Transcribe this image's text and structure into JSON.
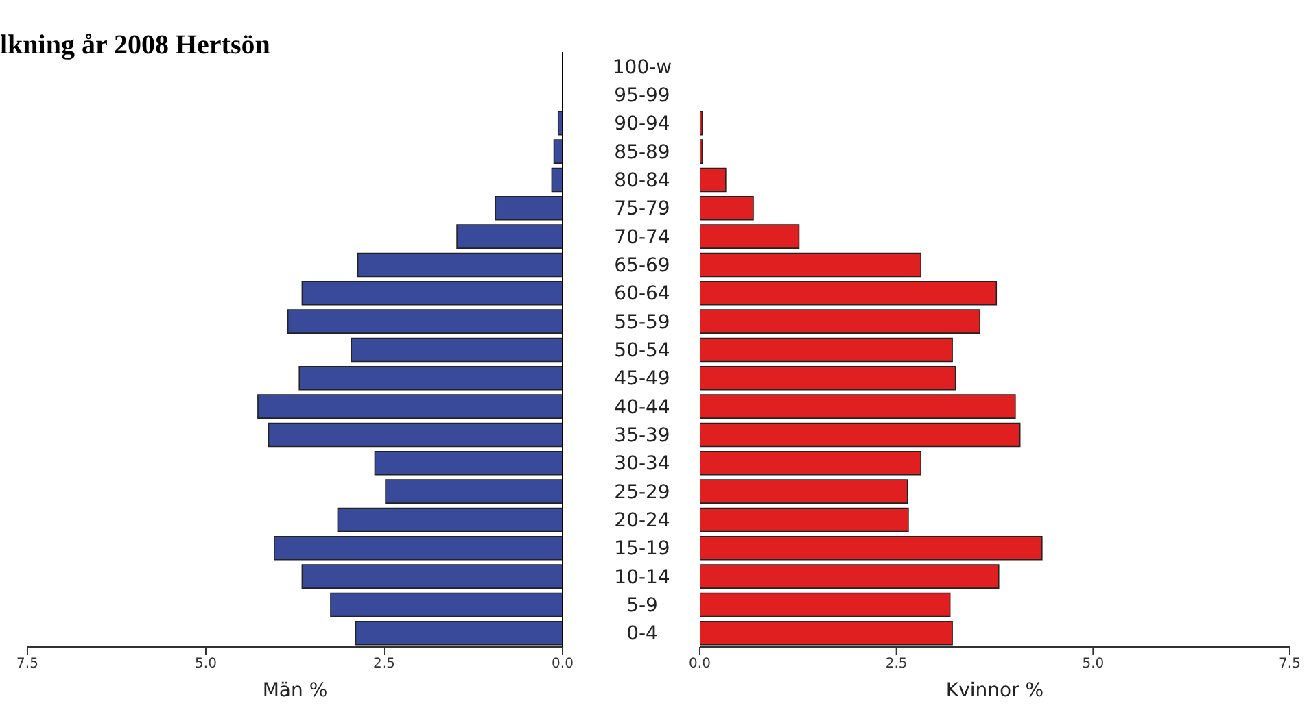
{
  "chart_data": [
    {
      "type": "bar",
      "orientation": "horizontal",
      "title": "lkning år 2008 Hertsön",
      "xlabel": "Män %",
      "categories": [
        "100-w",
        "95-99",
        "90-94",
        "85-89",
        "80-84",
        "75-79",
        "70-74",
        "65-69",
        "60-64",
        "55-59",
        "50-54",
        "45-49",
        "40-44",
        "35-39",
        "30-34",
        "25-29",
        "20-24",
        "15-19",
        "10-14",
        "5-9",
        "0-4"
      ],
      "values": [
        0,
        0,
        0.06,
        0.12,
        0.15,
        0.94,
        1.48,
        2.87,
        3.65,
        3.85,
        2.96,
        3.69,
        4.27,
        4.12,
        2.63,
        2.48,
        3.15,
        4.04,
        3.65,
        3.25,
        2.9
      ],
      "color": "#3a4a9a",
      "xlim": [
        7.5,
        0
      ],
      "xticks": [
        {
          "value": 7.5,
          "label": "7.5"
        },
        {
          "value": 5,
          "label": "5.0"
        },
        {
          "value": 2.5,
          "label": "2.5"
        },
        {
          "value": 0,
          "label": "0.0"
        }
      ]
    },
    {
      "type": "bar",
      "orientation": "horizontal",
      "xlabel": "Kvinnor %",
      "tick_labels": "x",
      "values": [
        0,
        0,
        0.03,
        0.03,
        0.33,
        0.68,
        1.26,
        2.81,
        3.77,
        3.56,
        3.21,
        3.25,
        4.01,
        4.07,
        2.81,
        2.64,
        2.65,
        4.35,
        3.8,
        3.18,
        3.21
      ],
      "color": "#e02020",
      "xlim": [
        0,
        7.5
      ],
      "xticks": [
        {
          "value": 0,
          "label": "0.0"
        },
        {
          "value": 2.5,
          "label": "2.5"
        },
        {
          "value": 5,
          "label": "5.0"
        },
        {
          "value": 7.5,
          "label": "7.5"
        }
      ]
    }
  ]
}
